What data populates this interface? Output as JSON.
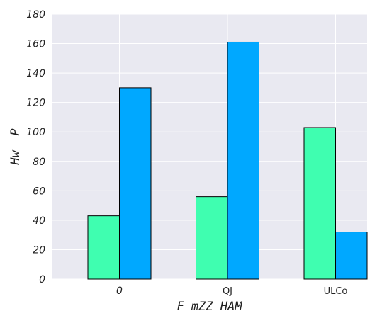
{
  "chart_data": {
    "type": "bar",
    "title": "",
    "xlabel": "F mZZ HAM",
    "ylabel": "Hw  P",
    "categories": [
      "0",
      "QJ",
      "ULCo"
    ],
    "series": [
      {
        "values": [
          43,
          56,
          103
        ],
        "color": "#3ffeb0"
      },
      {
        "values": [
          130,
          161,
          32
        ],
        "color": "#00a8ff"
      }
    ],
    "ylim": [
      0,
      180
    ],
    "yticks": [
      0,
      20,
      40,
      60,
      80,
      100,
      120,
      140,
      160,
      180
    ],
    "grid": true,
    "background": "#e9e9f1",
    "legend": "none"
  }
}
